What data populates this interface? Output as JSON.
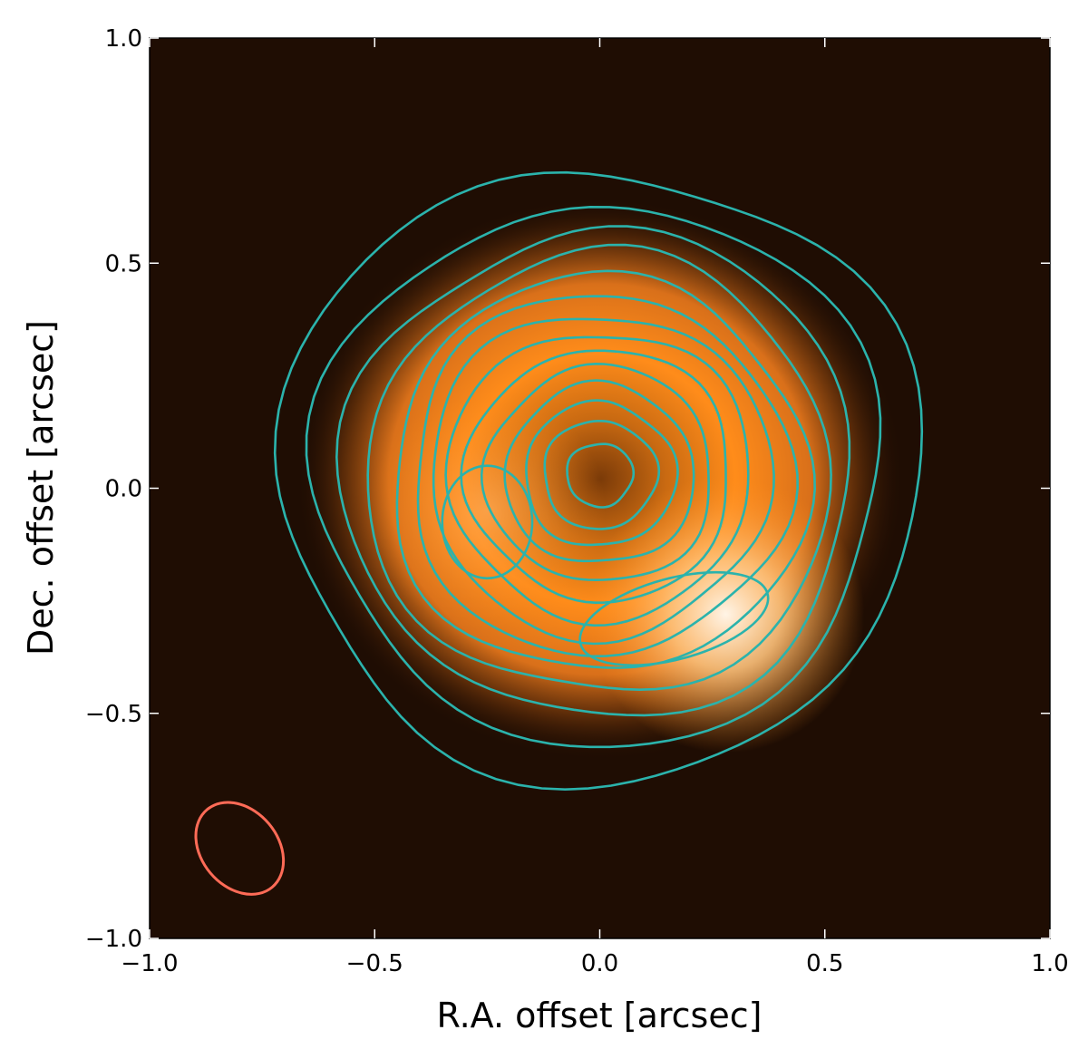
{
  "chart_data": {
    "type": "heatmap",
    "title": "",
    "xlabel": "R.A. offset [arcsec]",
    "ylabel": "Dec. offset [arcsec]",
    "xlim": [
      -1.0,
      1.0
    ],
    "ylim": [
      -1.0,
      1.0
    ],
    "xticks": [
      -1.0,
      -0.5,
      0.0,
      0.5,
      1.0
    ],
    "yticks": [
      -1.0,
      -0.5,
      0.0,
      0.5,
      1.0
    ],
    "xtick_labels": [
      "−1.0",
      "−0.5",
      "0.0",
      "0.5",
      "1.0"
    ],
    "ytick_labels": [
      "−1.0",
      "−0.5",
      "0.0",
      "0.5",
      "1.0"
    ],
    "grid": false,
    "colormap": [
      "#000000",
      "#3a1a05",
      "#b85a10",
      "#ff8c1a",
      "#fff4e6"
    ],
    "emission_components": [
      {
        "kind": "ring",
        "x": 0.0,
        "y": 0.02,
        "inner_radius": 0.12,
        "outer_radius": 0.62,
        "peak": 0.85
      },
      {
        "kind": "blob",
        "x": 0.28,
        "y": -0.28,
        "sigma": 0.14,
        "peak": 1.0
      },
      {
        "kind": "blob",
        "x": -0.25,
        "y": -0.05,
        "sigma": 0.12,
        "peak": 0.35
      }
    ],
    "contours": {
      "color": "#2bb3ac",
      "radii": [
        0.07,
        0.12,
        0.16,
        0.2,
        0.24,
        0.28,
        0.32,
        0.36,
        0.4,
        0.44,
        0.49,
        0.54,
        0.6,
        0.68
      ],
      "outer_extent": {
        "x": [
          -0.74,
          0.72
        ],
        "y": [
          -0.72,
          0.66
        ]
      },
      "peak_contour_south": {
        "x_range": [
          -0.05,
          0.38
        ],
        "y_range": [
          -0.38,
          -0.2
        ]
      },
      "peak_contour_east": {
        "x_range": [
          -0.35,
          -0.15
        ],
        "y_range": [
          -0.2,
          0.05
        ]
      }
    },
    "beam": {
      "x": -0.8,
      "y": -0.8,
      "major": 0.25,
      "minor": 0.17,
      "position_angle_deg": -40,
      "color": "#ff6b57"
    }
  }
}
